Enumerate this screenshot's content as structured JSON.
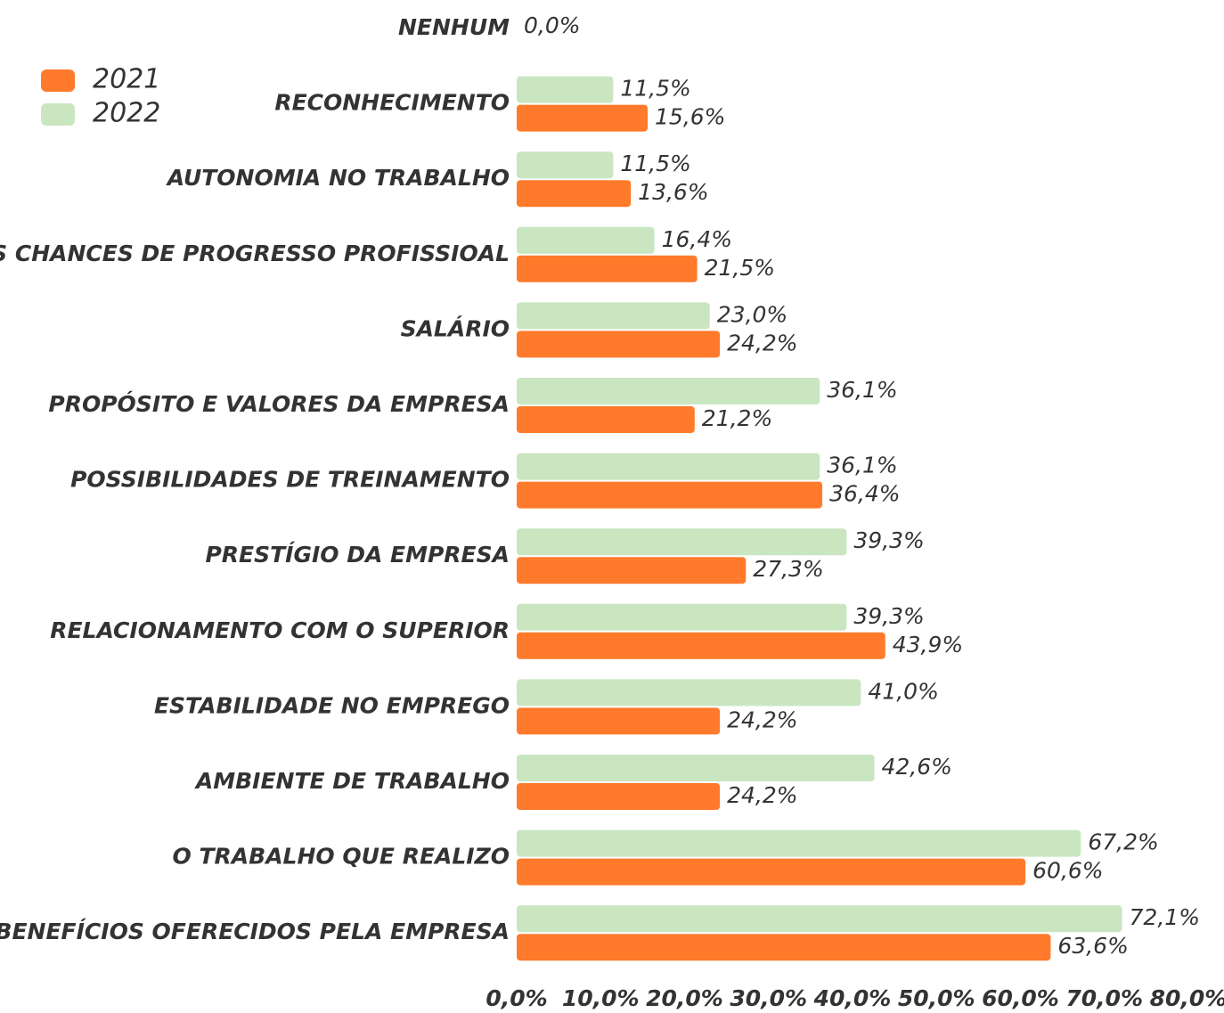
{
  "chart_data": {
    "type": "hbar",
    "categories": [
      "NENHUM",
      "RECONHECIMENTO",
      "AUTONOMIA NO TRABALHO",
      "AS CHANCES DE PROGRESSO PROFISSIOAL",
      "SALÁRIO",
      "PROPÓSITO E VALORES DA EMPRESA",
      "POSSIBILIDADES DE TREINAMENTO",
      "PRESTÍGIO DA EMPRESA",
      "RELACIONAMENTO COM O SUPERIOR",
      "ESTABILIDADE NO EMPREGO",
      "AMBIENTE DE TRABALHO",
      "O TRABALHO QUE REALIZO",
      "BENEFÍCIOS OFERECIDOS PELA EMPRESA"
    ],
    "series": [
      {
        "name": "2021",
        "color": "#ff7a2a",
        "values": [
          0,
          15.6,
          13.6,
          21.5,
          24.2,
          21.2,
          36.4,
          27.3,
          43.9,
          24.2,
          24.2,
          60.6,
          63.6
        ],
        "value_labels": [
          "0,0%",
          "15,6%",
          "13,6%",
          "21,5%",
          "24,2%",
          "21,2%",
          "36,4%",
          "27,3%",
          "43,9%",
          "24,2%",
          "24,2%",
          "60,6%",
          "63,6%"
        ]
      },
      {
        "name": "2022",
        "color": "#c9e6c1",
        "values": [
          null,
          11.5,
          11.5,
          16.4,
          23.0,
          36.1,
          36.1,
          39.3,
          39.3,
          41.0,
          42.6,
          67.2,
          72.1
        ],
        "value_labels": [
          null,
          "11,5%",
          "11,5%",
          "16,4%",
          "23,0%",
          "36,1%",
          "36,1%",
          "39,3%",
          "39,3%",
          "41,0%",
          "42,6%",
          "67,2%",
          "72,1%"
        ]
      }
    ],
    "xlim": [
      0,
      80
    ],
    "xticks": [
      {
        "value": 0,
        "label": "0,0%"
      },
      {
        "value": 10,
        "label": "10,0%"
      },
      {
        "value": 20,
        "label": "20,0%"
      },
      {
        "value": 30,
        "label": "30,0%"
      },
      {
        "value": 40,
        "label": "40,0%"
      },
      {
        "value": 50,
        "label": "50,0%"
      },
      {
        "value": 60,
        "label": "60,0%"
      },
      {
        "value": 70,
        "label": "70,0%"
      },
      {
        "value": 80,
        "label": "80,0%"
      }
    ],
    "legend": "top-left"
  }
}
